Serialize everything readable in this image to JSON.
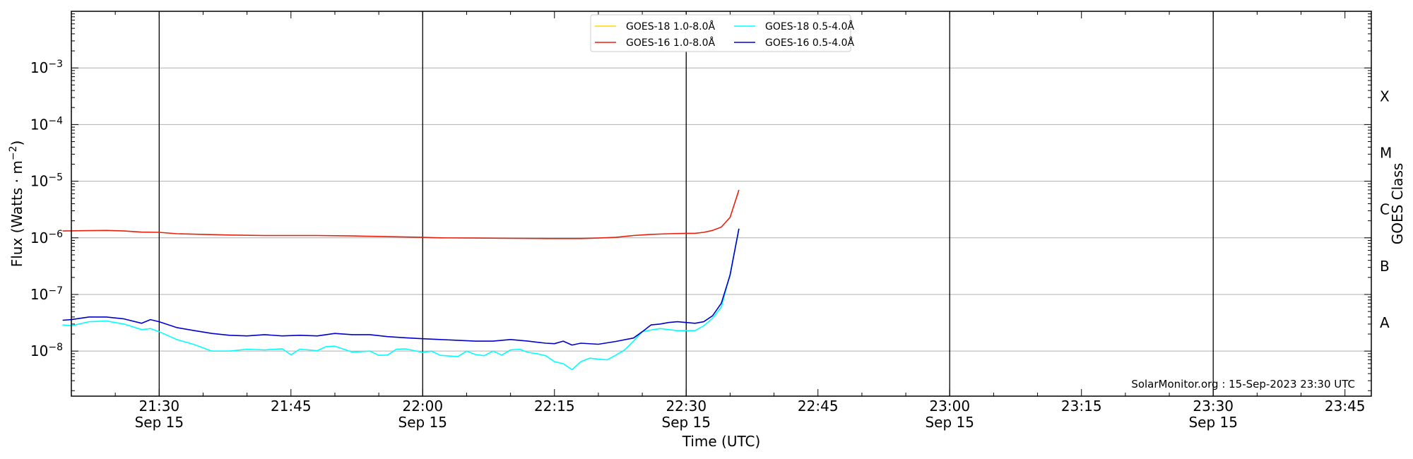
{
  "chart_data": {
    "type": "line",
    "title": "",
    "xlabel": "Time (UTC)",
    "ylabel": "Flux (Watts · m",
    "ylabel_sup": "−2",
    "ylabel_close": ")",
    "right_label": "GOES Class",
    "y_scale": "log",
    "ylim": [
      1.6e-09,
      0.01
    ],
    "xlim": [
      "21:20",
      "23:48"
    ],
    "grid": "horizontal at decades",
    "legend_position": "top-center",
    "credit": "SolarMonitor.org : 15-Sep-2023 23:30 UTC",
    "y_ticks": [
      {
        "value": 1e-08,
        "base": "10",
        "exp": "−8"
      },
      {
        "value": 1e-07,
        "base": "10",
        "exp": "−7"
      },
      {
        "value": 1e-06,
        "base": "10",
        "exp": "−6"
      },
      {
        "value": 1e-05,
        "base": "10",
        "exp": "−5"
      },
      {
        "value": 0.0001,
        "base": "10",
        "exp": "−4"
      },
      {
        "value": 0.001,
        "base": "10",
        "exp": "−3"
      }
    ],
    "x_ticks": [
      {
        "time": "21:30",
        "label": "21:30",
        "date": "Sep 15"
      },
      {
        "time": "21:45",
        "label": "21:45",
        "date": ""
      },
      {
        "time": "22:00",
        "label": "22:00",
        "date": "Sep 15"
      },
      {
        "time": "22:15",
        "label": "22:15",
        "date": ""
      },
      {
        "time": "22:30",
        "label": "22:30",
        "date": "Sep 15"
      },
      {
        "time": "22:45",
        "label": "22:45",
        "date": ""
      },
      {
        "time": "23:00",
        "label": "23:00",
        "date": "Sep 15"
      },
      {
        "time": "23:15",
        "label": "23:15",
        "date": ""
      },
      {
        "time": "23:30",
        "label": "23:30",
        "date": "Sep 15"
      },
      {
        "time": "23:45",
        "label": "23:45",
        "date": ""
      }
    ],
    "vlines": [
      "21:30",
      "22:00",
      "22:30",
      "23:00",
      "23:30"
    ],
    "goes_classes": [
      {
        "label": "X",
        "value": 0.000316
      },
      {
        "label": "M",
        "value": 3.16e-05
      },
      {
        "label": "C",
        "value": 3.16e-06
      },
      {
        "label": "B",
        "value": 3.16e-07
      },
      {
        "label": "A",
        "value": 3.16e-08
      }
    ],
    "series": [
      {
        "name": "GOES-18 1.0-8.0Å",
        "color": "#ffd700",
        "points": []
      },
      {
        "name": "GOES-18 0.5-4.0Å",
        "color": "#00ffff",
        "points": [
          [
            "21:19",
            2.9e-08
          ],
          [
            "21:20",
            2.8e-08
          ],
          [
            "21:22",
            3.3e-08
          ],
          [
            "21:24",
            3.4e-08
          ],
          [
            "21:26",
            3e-08
          ],
          [
            "21:28",
            2.4e-08
          ],
          [
            "21:29",
            2.5e-08
          ],
          [
            "21:30",
            2.2e-08
          ],
          [
            "21:32",
            1.6e-08
          ],
          [
            "21:34",
            1.3e-08
          ],
          [
            "21:36",
            1e-08
          ],
          [
            "21:38",
            1e-08
          ],
          [
            "21:40",
            1.08e-08
          ],
          [
            "21:42",
            1.05e-08
          ],
          [
            "21:44",
            1.1e-08
          ],
          [
            "21:45",
            8.6e-09
          ],
          [
            "21:46",
            1.08e-08
          ],
          [
            "21:48",
            1.02e-08
          ],
          [
            "21:49",
            1.2e-08
          ],
          [
            "21:50",
            1.22e-08
          ],
          [
            "21:52",
            9.6e-09
          ],
          [
            "21:54",
            1e-08
          ],
          [
            "21:55",
            8.4e-09
          ],
          [
            "21:56",
            8.5e-09
          ],
          [
            "21:57",
            1.08e-08
          ],
          [
            "21:58",
            1.1e-08
          ],
          [
            "22:00",
            9.5e-09
          ],
          [
            "22:01",
            1e-08
          ],
          [
            "22:02",
            8.4e-09
          ],
          [
            "22:03",
            8.2e-09
          ],
          [
            "22:04",
            8e-09
          ],
          [
            "22:05",
            1e-08
          ],
          [
            "22:06",
            8.7e-09
          ],
          [
            "22:07",
            8.3e-09
          ],
          [
            "22:08",
            1e-08
          ],
          [
            "22:09",
            8.5e-09
          ],
          [
            "22:10",
            1.05e-08
          ],
          [
            "22:11",
            1.08e-08
          ],
          [
            "22:12",
            9.5e-09
          ],
          [
            "22:13",
            9e-09
          ],
          [
            "22:14",
            8.3e-09
          ],
          [
            "22:15",
            6.5e-09
          ],
          [
            "22:16",
            6e-09
          ],
          [
            "22:17",
            4.7e-09
          ],
          [
            "22:18",
            6.5e-09
          ],
          [
            "22:19",
            7.5e-09
          ],
          [
            "22:20",
            7.2e-09
          ],
          [
            "22:21",
            7e-09
          ],
          [
            "22:22",
            8.5e-09
          ],
          [
            "22:23",
            1.05e-08
          ],
          [
            "22:24",
            1.5e-08
          ],
          [
            "22:25",
            2.2e-08
          ],
          [
            "22:26",
            2.35e-08
          ],
          [
            "22:27",
            2.5e-08
          ],
          [
            "22:28",
            2.4e-08
          ],
          [
            "22:29",
            2.3e-08
          ],
          [
            "22:30",
            2.3e-08
          ],
          [
            "22:31",
            2.3e-08
          ],
          [
            "22:32",
            2.8e-08
          ],
          [
            "22:33",
            3.8e-08
          ],
          [
            "22:34",
            6e-08
          ],
          [
            "22:35",
            2.3e-07
          ],
          [
            "22:36",
            1.45e-06
          ]
        ]
      },
      {
        "name": "GOES-16 1.0-8.0Å",
        "color": "#e8200b",
        "points": [
          [
            "21:19",
            1.32e-06
          ],
          [
            "21:22",
            1.34e-06
          ],
          [
            "21:24",
            1.35e-06
          ],
          [
            "21:26",
            1.32e-06
          ],
          [
            "21:28",
            1.26e-06
          ],
          [
            "21:30",
            1.25e-06
          ],
          [
            "21:32",
            1.18e-06
          ],
          [
            "21:35",
            1.15e-06
          ],
          [
            "21:38",
            1.12e-06
          ],
          [
            "21:42",
            1.1e-06
          ],
          [
            "21:45",
            1.1e-06
          ],
          [
            "21:48",
            1.1e-06
          ],
          [
            "21:52",
            1.08e-06
          ],
          [
            "21:56",
            1.05e-06
          ],
          [
            "22:00",
            1.02e-06
          ],
          [
            "22:02",
            1e-06
          ],
          [
            "22:06",
            9.9e-07
          ],
          [
            "22:10",
            9.8e-07
          ],
          [
            "22:14",
            9.7e-07
          ],
          [
            "22:18",
            9.7e-07
          ],
          [
            "22:20",
            9.9e-07
          ],
          [
            "22:22",
            1.02e-06
          ],
          [
            "22:24",
            1.1e-06
          ],
          [
            "22:26",
            1.15e-06
          ],
          [
            "22:28",
            1.18e-06
          ],
          [
            "22:30",
            1.2e-06
          ],
          [
            "22:31",
            1.2e-06
          ],
          [
            "22:32",
            1.25e-06
          ],
          [
            "22:33",
            1.35e-06
          ],
          [
            "22:34",
            1.55e-06
          ],
          [
            "22:35",
            2.3e-06
          ],
          [
            "22:36",
            7e-06
          ]
        ]
      },
      {
        "name": "GOES-16 0.5-4.0Å",
        "color": "#0000cd",
        "points": [
          [
            "21:19",
            3.5e-08
          ],
          [
            "21:20",
            3.6e-08
          ],
          [
            "21:22",
            4e-08
          ],
          [
            "21:24",
            4e-08
          ],
          [
            "21:26",
            3.7e-08
          ],
          [
            "21:28",
            3.1e-08
          ],
          [
            "21:29",
            3.6e-08
          ],
          [
            "21:30",
            3.3e-08
          ],
          [
            "21:32",
            2.6e-08
          ],
          [
            "21:34",
            2.3e-08
          ],
          [
            "21:36",
            2.05e-08
          ],
          [
            "21:38",
            1.9e-08
          ],
          [
            "21:40",
            1.85e-08
          ],
          [
            "21:42",
            1.95e-08
          ],
          [
            "21:44",
            1.85e-08
          ],
          [
            "21:46",
            1.9e-08
          ],
          [
            "21:48",
            1.85e-08
          ],
          [
            "21:50",
            2.05e-08
          ],
          [
            "21:52",
            1.95e-08
          ],
          [
            "21:54",
            1.95e-08
          ],
          [
            "21:56",
            1.8e-08
          ],
          [
            "21:58",
            1.72e-08
          ],
          [
            "22:00",
            1.65e-08
          ],
          [
            "22:02",
            1.6e-08
          ],
          [
            "22:04",
            1.55e-08
          ],
          [
            "22:06",
            1.5e-08
          ],
          [
            "22:08",
            1.5e-08
          ],
          [
            "22:10",
            1.6e-08
          ],
          [
            "22:12",
            1.5e-08
          ],
          [
            "22:14",
            1.38e-08
          ],
          [
            "22:15",
            1.35e-08
          ],
          [
            "22:16",
            1.5e-08
          ],
          [
            "22:17",
            1.28e-08
          ],
          [
            "22:18",
            1.38e-08
          ],
          [
            "22:20",
            1.32e-08
          ],
          [
            "22:22",
            1.48e-08
          ],
          [
            "22:24",
            1.7e-08
          ],
          [
            "22:25",
            2.2e-08
          ],
          [
            "22:26",
            2.9e-08
          ],
          [
            "22:27",
            3e-08
          ],
          [
            "22:28",
            3.2e-08
          ],
          [
            "22:29",
            3.3e-08
          ],
          [
            "22:30",
            3.2e-08
          ],
          [
            "22:31",
            3.1e-08
          ],
          [
            "22:32",
            3.3e-08
          ],
          [
            "22:33",
            4.2e-08
          ],
          [
            "22:34",
            7e-08
          ],
          [
            "22:35",
            2.2e-07
          ],
          [
            "22:36",
            1.45e-06
          ]
        ]
      }
    ]
  }
}
